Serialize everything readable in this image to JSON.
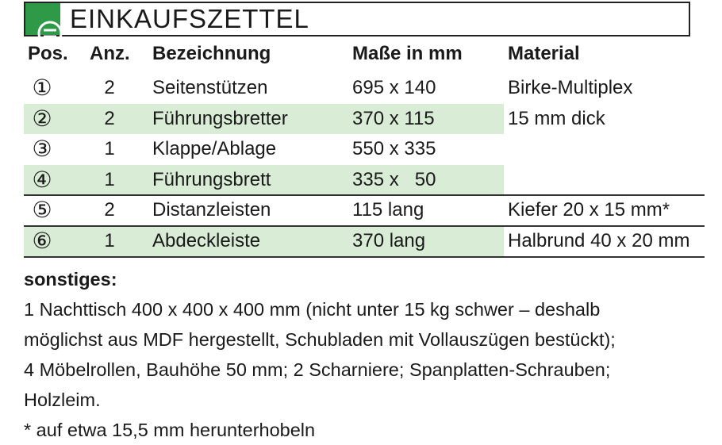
{
  "header": {
    "title": "EINKAUFSZETTEL"
  },
  "table": {
    "columns": [
      "Pos.",
      "Anz.",
      "Bezeichnung",
      "Maße in mm",
      "Material"
    ],
    "rows": [
      [
        "①",
        "2",
        "Seitenstützen",
        "695 x 140",
        "Birke-Multiplex"
      ],
      [
        "②",
        "2",
        "Führungsbretter",
        "370 x 115",
        "15 mm dick"
      ],
      [
        "③",
        "1",
        "Klappe/Ablage",
        "550 x 335",
        ""
      ],
      [
        "④",
        "1",
        "Führungsbrett",
        "335 x   50",
        ""
      ],
      [
        "⑤",
        "2",
        "Distanzleisten",
        "115 lang",
        "Kiefer 20 x 15 mm*"
      ],
      [
        "⑥",
        "1",
        "Abdeckleiste",
        "370 lang",
        "Halbrund 40 x 20 mm"
      ]
    ]
  },
  "notes": {
    "heading": "sonstiges:",
    "lines": [
      "1 Nachttisch 400 x 400 x 400 mm (nicht unter 15 kg schwer – deshalb",
      "möglichst aus MDF hergestellt, Schubladen mit Vollauszügen bestückt);",
      "4 Möbelrollen, Bauhöhe 50 mm; 2 Scharniere; Spanplatten-Schrauben;",
      "Holzleim.",
      "* auf etwa 15,5 mm herunterhobeln"
    ]
  }
}
